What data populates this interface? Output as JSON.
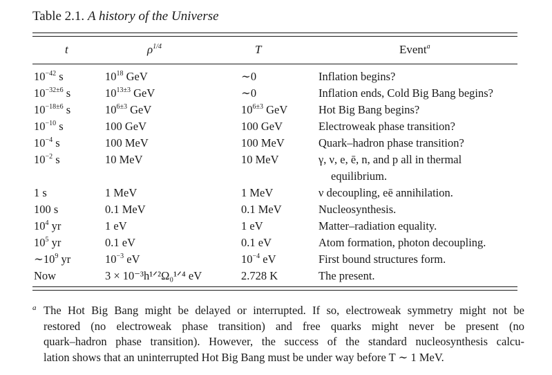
{
  "caption": {
    "label": "Table 2.1.",
    "title": "A history of the Universe"
  },
  "header": {
    "t": "t",
    "rho": "ρ",
    "rho_sup": "1/4",
    "T": "T",
    "event": "Event",
    "event_sup": "a"
  },
  "rows": [
    {
      "t": "10",
      "t_sup": "−42",
      "t_unit": " s",
      "rho": "10",
      "rho_sup": "18",
      "rho_unit": " GeV",
      "T": "∼0",
      "event": "Inflation begins?"
    },
    {
      "t": "10",
      "t_sup": "−32±6",
      "t_unit": " s",
      "rho": "10",
      "rho_sup": "13±3",
      "rho_unit": " GeV",
      "T": "∼0",
      "event": "Inflation ends, Cold Big Bang begins?"
    },
    {
      "t": "10",
      "t_sup": "−18±6",
      "t_unit": " s",
      "rho": "10",
      "rho_sup": "6±3",
      "rho_unit": " GeV",
      "T": "10",
      "T_sup": "6±3",
      "T_unit": " GeV",
      "event": "Hot Big Bang begins?"
    },
    {
      "t": "10",
      "t_sup": "−10",
      "t_unit": " s",
      "rho": "100 GeV",
      "T": "100 GeV",
      "event": "Electroweak phase transition?"
    },
    {
      "t": "10",
      "t_sup": "−4",
      "t_unit": " s",
      "rho": "100 MeV",
      "T": "100 MeV",
      "event": "Quark–hadron phase transition?"
    },
    {
      "t": "10",
      "t_sup": "−2",
      "t_unit": " s",
      "rho": "10 MeV",
      "T": "10 MeV",
      "event": "γ, ν, e, ē, n, and p all in thermal",
      "event_cont": "equilibrium."
    },
    {
      "t": "1 s",
      "rho": "1 MeV",
      "T": "1 MeV",
      "event": "ν decoupling, eē annihilation."
    },
    {
      "t": "100 s",
      "rho": "0.1 MeV",
      "T": "0.1 MeV",
      "event": "Nucleosynthesis."
    },
    {
      "t": "10",
      "t_sup": "4",
      "t_unit": " yr",
      "rho": "1 eV",
      "T": "1 eV",
      "event": "Matter–radiation equality."
    },
    {
      "t": "10",
      "t_sup": "5",
      "t_unit": " yr",
      "rho": "0.1 eV",
      "T": "0.1 eV",
      "event": "Atom formation, photon decoupling."
    },
    {
      "t": "∼10",
      "t_sup": "9",
      "t_unit": " yr",
      "rho": "10",
      "rho_sup": "−3",
      "rho_unit": " eV",
      "T": "10",
      "T_sup": "−4",
      "T_unit": " eV",
      "event": "First bound structures form."
    },
    {
      "t": "Now",
      "rho": "3 × 10⁻³h¹ᐟ²Ω₀¹ᐟ⁴ eV",
      "T": "2.728 K",
      "event": "The present."
    }
  ],
  "footnote": {
    "mark": "a",
    "lines": [
      "The Hot Big Bang might be delayed or interrupted. If so, electroweak symmetry might not be",
      "restored (no electroweak phase transition) and free quarks might never be present (no",
      "quark–hadron phase transition). However, the success of the standard nucleosynthesis calcu-",
      "lation shows that an uninterrupted Hot Big Bang must be under way before T ∼ 1 MeV."
    ]
  }
}
